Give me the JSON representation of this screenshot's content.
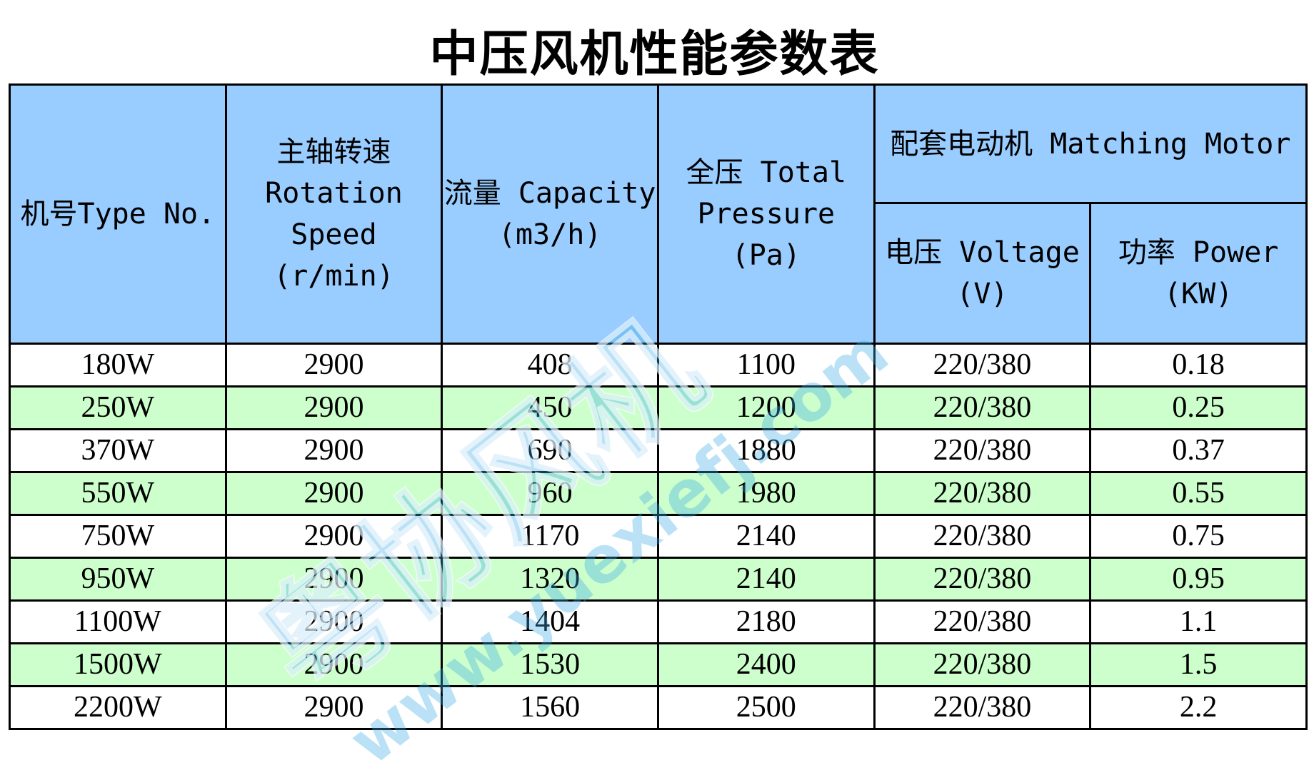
{
  "title": "中压风机性能参数表",
  "table": {
    "headers": {
      "type_no": "机号Type No.",
      "rotation_speed": "主轴转速 Rotation Speed (r/min)",
      "capacity": "流量 Capacity (m3/h)",
      "total_pressure": "全压 Total Pressure (Pa)",
      "matching_motor": "配套电动机 Matching Motor",
      "voltage": "电压 Voltage (V)",
      "power": "功率 Power (KW)"
    },
    "rows": [
      [
        "180W",
        "2900",
        "408",
        "1100",
        "220/380",
        "0.18"
      ],
      [
        "250W",
        "2900",
        "450",
        "1200",
        "220/380",
        "0.25"
      ],
      [
        "370W",
        "2900",
        "690",
        "1880",
        "220/380",
        "0.37"
      ],
      [
        "550W",
        "2900",
        "960",
        "1980",
        "220/380",
        "0.55"
      ],
      [
        "750W",
        "2900",
        "1170",
        "2140",
        "220/380",
        "0.75"
      ],
      [
        "950W",
        "2900",
        "1320",
        "2140",
        "220/380",
        "0.95"
      ],
      [
        "1100W",
        "2900",
        "1404",
        "2180",
        "220/380",
        "1.1"
      ],
      [
        "1500W",
        "2900",
        "1530",
        "2400",
        "220/380",
        "1.5"
      ],
      [
        "2200W",
        "2900",
        "1560",
        "2500",
        "220/380",
        "2.2"
      ]
    ]
  },
  "watermark": {
    "logo": "粤协风机",
    "url": "www.yuexiefj.com"
  },
  "colors": {
    "header_bg": "#99ccff",
    "alt_row_bg": "#ccffcc",
    "watermark": "#3caae6"
  }
}
